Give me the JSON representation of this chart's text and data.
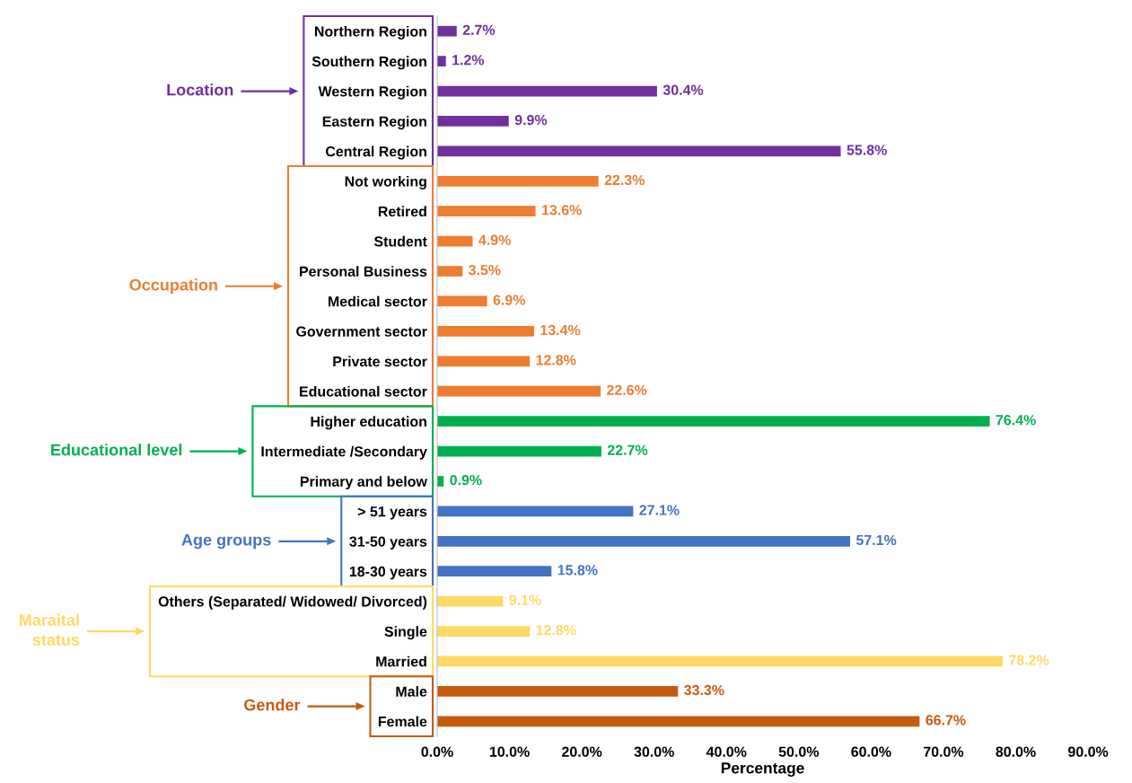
{
  "chart_data": {
    "type": "bar",
    "orientation": "horizontal",
    "xlabel": "Percentage",
    "categories": [
      "Northern Region",
      "Southern Region",
      "Western Region",
      "Eastern Region",
      "Central Region",
      "Not working",
      "Retired",
      "Student",
      "Personal Business",
      "Medical sector",
      "Government sector",
      "Private sector",
      "Educational sector",
      "Higher education",
      "Intermediate /Secondary",
      "Primary and below",
      "> 51 years",
      "31-50 years",
      "18-30 years",
      "Others (Separated/ Widowed/ Divorced)",
      "Single",
      "Married",
      "Male",
      "Female"
    ],
    "values": [
      2.7,
      1.2,
      30.4,
      9.9,
      55.8,
      22.3,
      13.6,
      4.9,
      3.5,
      6.9,
      13.4,
      12.8,
      22.6,
      76.4,
      22.7,
      0.9,
      27.1,
      57.1,
      15.8,
      9.1,
      12.8,
      78.2,
      33.3,
      66.7
    ],
    "colors": [
      "#7030a0",
      "#7030a0",
      "#7030a0",
      "#7030a0",
      "#7030a0",
      "#ed7d31",
      "#ed7d31",
      "#ed7d31",
      "#ed7d31",
      "#ed7d31",
      "#ed7d31",
      "#ed7d31",
      "#ed7d31",
      "#00b050",
      "#00b050",
      "#00b050",
      "#4472c4",
      "#4472c4",
      "#4472c4",
      "#ffd966",
      "#ffd966",
      "#ffd966",
      "#c55a11",
      "#c55a11"
    ],
    "value_labels": [
      "2.7%",
      "1.2%",
      "30.4%",
      "9.9%",
      "55.8%",
      "22.3%",
      "13.6%",
      "4.9%",
      "3.5%",
      "6.9%",
      "13.4%",
      "12.8%",
      "22.6%",
      "76.4%",
      "22.7%",
      "0.9%",
      "27.1%",
      "57.1%",
      "15.8%",
      "9.1%",
      "12.8%",
      "78.2%",
      "33.3%",
      "66.7%"
    ],
    "xlim": [
      0,
      90
    ],
    "xticks": [
      {
        "value": 0,
        "label": "0.0%"
      },
      {
        "value": 10,
        "label": "10.0%"
      },
      {
        "value": 20,
        "label": "20.0%"
      },
      {
        "value": 30,
        "label": "30.0%"
      },
      {
        "value": 40,
        "label": "40.0%"
      },
      {
        "value": 50,
        "label": "50.0%"
      },
      {
        "value": 60,
        "label": "60.0%"
      },
      {
        "value": 70,
        "label": "70.0%"
      },
      {
        "value": 80,
        "label": "80.0%"
      },
      {
        "value": 90,
        "label": "90.0%"
      }
    ],
    "annotations": [
      "Location",
      "Occupation",
      "Educational level",
      "Age groups",
      "Maraital\nstatus",
      "Gender"
    ],
    "grid": false,
    "legend": false
  }
}
